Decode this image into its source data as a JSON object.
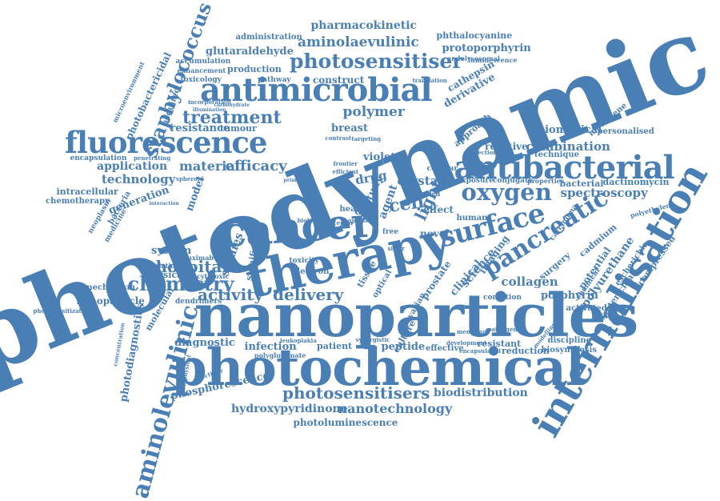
{
  "color": "#4a7fb5",
  "words": [
    {
      "id": "photodynamic",
      "text": "photodynamic"
    },
    {
      "id": "nanoparticles",
      "text": "nanoparticles"
    },
    {
      "id": "photochemical",
      "text": "photochemical"
    },
    {
      "id": "therapy",
      "text": "therapy"
    },
    {
      "id": "cancer",
      "text": "cancer"
    },
    {
      "id": "internalisation",
      "text": "internalisation"
    },
    {
      "id": "antimicrobial",
      "text": "antimicrobial"
    },
    {
      "id": "antibacterial",
      "text": "antibacterial"
    },
    {
      "id": "fluorescence",
      "text": "fluorescence"
    },
    {
      "id": "aminolevulinic",
      "text": "aminolevulinic"
    },
    {
      "id": "staphylococcus",
      "text": "staphylococcus"
    },
    {
      "id": "photosensitiser",
      "text": "photosensitiser"
    },
    {
      "id": "photosensitisers",
      "text": "photosensitisers"
    },
    {
      "id": "surface",
      "text": "surface"
    },
    {
      "id": "oxygen",
      "text": "oxygen"
    },
    {
      "id": "pancreatic",
      "text": "pancreatic"
    },
    {
      "id": "chemistry",
      "text": "chemistry"
    },
    {
      "id": "treatment",
      "text": "treatment"
    },
    {
      "id": "delivery",
      "text": "delivery"
    },
    {
      "id": "activity",
      "text": "activity"
    },
    {
      "id": "cell",
      "text": "cell"
    },
    {
      "id": "light",
      "text": "light"
    },
    {
      "id": "aminolaevulinic",
      "text": "aminolaevulinic"
    },
    {
      "id": "pharmacokinetic",
      "text": "pharmacokinetic"
    },
    {
      "id": "protoporphyrin",
      "text": "protoporphyrin"
    },
    {
      "id": "phthalocyanine",
      "text": "phthalocyanine"
    },
    {
      "id": "glutaraldehyde",
      "text": "glutaraldehyde"
    },
    {
      "id": "administration",
      "text": "administration"
    },
    {
      "id": "construct",
      "text": "construct"
    },
    {
      "id": "polymer",
      "text": "polymer"
    },
    {
      "id": "efficacy",
      "text": "efficacy"
    },
    {
      "id": "material",
      "text": "material"
    },
    {
      "id": "application",
      "text": "application"
    },
    {
      "id": "technology",
      "text": "technology"
    },
    {
      "id": "generation",
      "text": "generation"
    },
    {
      "id": "resistance",
      "text": "resistance"
    },
    {
      "id": "tumour",
      "text": "tumour"
    },
    {
      "id": "breast",
      "text": "breast"
    },
    {
      "id": "combination",
      "text": "combination"
    },
    {
      "id": "spectroscopy",
      "text": "spectroscopy"
    },
    {
      "id": "biomedical",
      "text": "biomedical"
    },
    {
      "id": "personalised",
      "text": "personalised"
    },
    {
      "id": "dactinomycin",
      "text": "dactinomycin"
    },
    {
      "id": "hospital",
      "text": "hospital"
    },
    {
      "id": "studies",
      "text": "studies"
    },
    {
      "id": "collagen",
      "text": "collagen"
    },
    {
      "id": "porphyrin",
      "text": "porphyrin"
    },
    {
      "id": "polyurethane",
      "text": "polyurethane"
    },
    {
      "id": "potential",
      "text": "potential"
    },
    {
      "id": "imaging",
      "text": "imaging"
    },
    {
      "id": "science",
      "text": "science"
    },
    {
      "id": "clinical",
      "text": "clinical"
    },
    {
      "id": "surgery",
      "text": "surgery"
    },
    {
      "id": "cadmium",
      "text": "cadmium"
    },
    {
      "id": "bacterial",
      "text": "bacterial"
    },
    {
      "id": "crystal",
      "text": "crystal"
    },
    {
      "id": "violet",
      "text": "violet"
    },
    {
      "id": "drug",
      "text": "drug"
    },
    {
      "id": "agent",
      "text": "agent"
    },
    {
      "id": "dot",
      "text": "dot"
    },
    {
      "id": "effect",
      "text": "effect"
    },
    {
      "id": "novel",
      "text": "novel"
    },
    {
      "id": "human",
      "text": "human"
    },
    {
      "id": "diagnostic",
      "text": "diagnostic"
    },
    {
      "id": "infection",
      "text": "infection"
    },
    {
      "id": "patient",
      "text": "patient"
    },
    {
      "id": "peptide",
      "text": "peptide"
    },
    {
      "id": "effective",
      "text": "effective"
    },
    {
      "id": "resistant",
      "text": "resistant"
    },
    {
      "id": "reduction",
      "text": "reduction"
    },
    {
      "id": "discipline",
      "text": "discipline"
    },
    {
      "id": "biosynthesis",
      "text": "biosynthesis"
    },
    {
      "id": "phosphorescence",
      "text": "phosphorescence"
    },
    {
      "id": "biodistribution",
      "text": "biodistribution"
    },
    {
      "id": "hydroxypyridinone",
      "text": "hydroxypyridinone"
    },
    {
      "id": "nanotechnology",
      "text": "nanotechnology"
    },
    {
      "id": "photoluminescence",
      "text": "photoluminescence"
    },
    {
      "id": "photodiagnostics",
      "text": "photodiagnostics"
    },
    {
      "id": "photobactericidal",
      "text": "photobactericidal"
    },
    {
      "id": "molecular",
      "text": "molecular"
    },
    {
      "id": "nanoparticle",
      "text": "nanoparticle"
    },
    {
      "id": "mechanism",
      "text": "mechanism"
    },
    {
      "id": "dendrimers",
      "text": "dendrimers"
    },
    {
      "id": "physical",
      "text": "physical"
    },
    {
      "id": "system",
      "text": "system"
    },
    {
      "id": "population",
      "text": "population"
    },
    {
      "id": "cetuximab",
      "text": "cetuximab"
    },
    {
      "id": "cytotoxic",
      "text": "cytotoxic"
    },
    {
      "id": "intracellular",
      "text": "intracellular"
    },
    {
      "id": "chemotherapy",
      "text": "chemotherapy"
    },
    {
      "id": "encapsulation",
      "text": "encapsulation"
    },
    {
      "id": "bacteria",
      "text": "bacteria"
    },
    {
      "id": "neoplasm",
      "text": "neoplasm"
    },
    {
      "id": "medicine",
      "text": "medicine"
    },
    {
      "id": "model",
      "text": "model"
    },
    {
      "id": "acquired",
      "text": "acquired"
    },
    {
      "id": "microenvironment",
      "text": "microenvironment"
    },
    {
      "id": "accumulation",
      "text": "accumulation"
    },
    {
      "id": "enhancement",
      "text": "enhancement"
    },
    {
      "id": "toxicology",
      "text": "toxicology"
    },
    {
      "id": "production",
      "text": "production"
    },
    {
      "id": "pathway",
      "text": "pathway"
    },
    {
      "id": "endolysosomal",
      "text": "endolysosomal"
    },
    {
      "id": "luminescence",
      "text": "luminescence"
    },
    {
      "id": "cathepsin",
      "text": "cathepsin"
    },
    {
      "id": "derivative",
      "text": "derivative"
    },
    {
      "id": "translation",
      "text": "translation"
    },
    {
      "id": "reactive",
      "text": "reactive"
    },
    {
      "id": "technique",
      "text": "technique"
    },
    {
      "id": "methylene",
      "text": "methylene"
    },
    {
      "id": "approach",
      "text": "approach"
    },
    {
      "id": "exposure",
      "text": "exposure"
    },
    {
      "id": "conjugate",
      "text": "conjugate"
    },
    {
      "id": "properties",
      "text": "properties"
    },
    {
      "id": "cellular",
      "text": "cellular"
    },
    {
      "id": "detection",
      "text": "detection"
    },
    {
      "id": "guided",
      "text": "guided"
    },
    {
      "id": "escherichia",
      "text": "escherichia"
    },
    {
      "id": "bactericidal",
      "text": "bactericidal"
    },
    {
      "id": "compressed",
      "text": "compressed"
    },
    {
      "id": "polyethylene",
      "text": "polyethylene"
    },
    {
      "id": "chemical",
      "text": "chemical"
    },
    {
      "id": "activated",
      "text": "activated"
    },
    {
      "id": "carcinoma",
      "text": "carcinoma"
    },
    {
      "id": "condition",
      "text": "condition"
    },
    {
      "id": "prostate",
      "text": "prostate"
    },
    {
      "id": "culture",
      "text": "culture"
    },
    {
      "id": "ovarian",
      "text": "ovarian"
    },
    {
      "id": "optical",
      "text": "optical"
    },
    {
      "id": "electron",
      "text": "electron"
    },
    {
      "id": "tissue",
      "text": "tissue"
    },
    {
      "id": "significant",
      "text": "significant"
    },
    {
      "id": "study",
      "text": "study"
    },
    {
      "id": "toxicity",
      "text": "toxicity"
    },
    {
      "id": "head",
      "text": "head"
    },
    {
      "id": "free",
      "text": "free"
    },
    {
      "id": "leukoplakia",
      "text": "leukoplakia"
    },
    {
      "id": "polyglutamate",
      "text": "polyglutamate"
    },
    {
      "id": "biophysical",
      "text": "biophysical"
    },
    {
      "id": "concentration",
      "text": "concentration"
    },
    {
      "id": "selectivity",
      "text": "selectivity"
    },
    {
      "id": "synergistic",
      "text": "synergistic"
    },
    {
      "id": "development",
      "text": "development"
    },
    {
      "id": "encapsulated",
      "text": "encapsulated"
    },
    {
      "id": "modelling",
      "text": "modelling"
    },
    {
      "id": "interaction",
      "text": "interaction"
    },
    {
      "id": "photosensitization",
      "text": "photosensitization"
    },
    {
      "id": "spheroid",
      "text": "spheroid"
    },
    {
      "id": "penetrating",
      "text": "penetrating"
    },
    {
      "id": "incorporation",
      "text": "incorporation"
    },
    {
      "id": "carbohydrate",
      "text": "carbohydrate"
    },
    {
      "id": "illumination",
      "text": "illumination"
    },
    {
      "id": "pathogen",
      "text": "pathogen"
    },
    {
      "id": "membrane",
      "text": "membrane"
    },
    {
      "id": "targeting",
      "text": "targeting"
    },
    {
      "id": "contrast",
      "text": "contrast"
    },
    {
      "id": "frontier",
      "text": "frontier"
    },
    {
      "id": "efficient",
      "text": "efficient"
    },
    {
      "id": "biology",
      "text": "biology"
    },
    {
      "id": "receptor",
      "text": "receptor"
    },
    {
      "id": "uptake",
      "text": "uptake"
    },
    {
      "id": "primary",
      "text": "primary"
    },
    {
      "id": "positive",
      "text": "positive"
    },
    {
      "id": "silver",
      "text": "silver"
    }
  ]
}
